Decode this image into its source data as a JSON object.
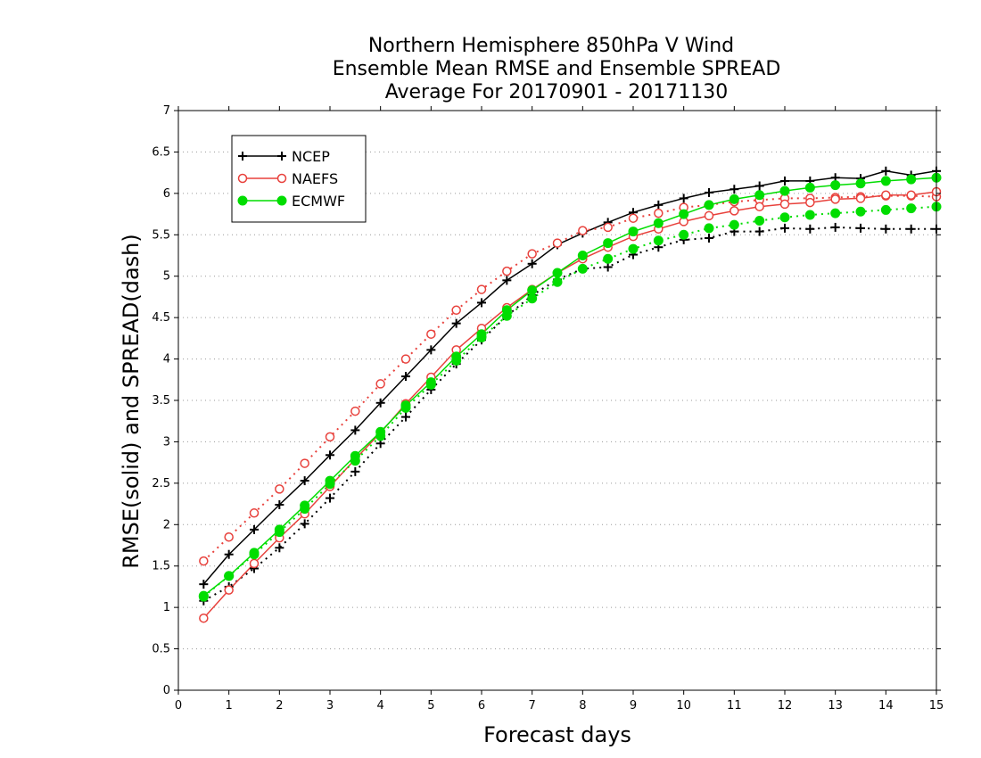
{
  "chart_data": {
    "type": "line",
    "title": [
      "Northern Hemisphere 850hPa V Wind",
      "Ensemble Mean RMSE and Ensemble SPREAD",
      "Average For 20170901 - 20171130"
    ],
    "xlabel": "Forecast days",
    "ylabel": "RMSE(solid) and SPREAD(dash)",
    "xlim": [
      0,
      15
    ],
    "ylim": [
      0,
      7
    ],
    "x_ticks": [
      "0",
      "1",
      "2",
      "3",
      "4",
      "5",
      "6",
      "7",
      "8",
      "9",
      "10",
      "11",
      "12",
      "13",
      "14",
      "15"
    ],
    "y_ticks": [
      "0",
      "0.5",
      "1",
      "1.5",
      "2",
      "2.5",
      "3",
      "3.5",
      "4",
      "4.5",
      "5",
      "5.5",
      "6",
      "6.5",
      "7"
    ],
    "grid": "horizontal dotted",
    "legend_position": "top-left",
    "x": [
      0.5,
      1,
      1.5,
      2,
      2.5,
      3,
      3.5,
      4,
      4.5,
      5,
      5.5,
      6,
      6.5,
      7,
      7.5,
      8,
      8.5,
      9,
      9.5,
      10,
      10.5,
      11,
      11.5,
      12,
      12.5,
      13,
      13.5,
      14,
      14.5,
      15
    ],
    "series": [
      {
        "name": "NCEP",
        "color": "#000000",
        "marker": "plus",
        "rmse": [
          1.28,
          1.64,
          1.94,
          2.24,
          2.53,
          2.84,
          3.14,
          3.47,
          3.79,
          4.11,
          4.43,
          4.68,
          4.95,
          5.15,
          5.38,
          5.52,
          5.65,
          5.77,
          5.86,
          5.94,
          6.01,
          6.05,
          6.09,
          6.15,
          6.15,
          6.19,
          6.18,
          6.27,
          6.22,
          6.27
        ],
        "spread": [
          1.08,
          1.25,
          1.47,
          1.72,
          2.01,
          2.32,
          2.64,
          2.98,
          3.3,
          3.63,
          3.94,
          4.23,
          4.52,
          4.77,
          4.96,
          5.09,
          5.11,
          5.26,
          5.35,
          5.44,
          5.46,
          5.54,
          5.54,
          5.58,
          5.57,
          5.59,
          5.58,
          5.57,
          5.57,
          5.57
        ]
      },
      {
        "name": "NAEFS",
        "color": "#e8413c",
        "marker": "circle-open",
        "rmse": [
          0.87,
          1.21,
          1.53,
          1.84,
          2.13,
          2.46,
          2.79,
          3.11,
          3.46,
          3.78,
          4.11,
          4.37,
          4.62,
          4.84,
          5.04,
          5.21,
          5.35,
          5.48,
          5.57,
          5.66,
          5.73,
          5.79,
          5.84,
          5.87,
          5.89,
          5.93,
          5.94,
          5.98,
          5.98,
          6.02
        ],
        "spread": [
          1.56,
          1.85,
          2.14,
          2.43,
          2.74,
          3.06,
          3.37,
          3.7,
          4.0,
          4.3,
          4.59,
          4.84,
          5.06,
          5.27,
          5.4,
          5.55,
          5.59,
          5.7,
          5.76,
          5.83,
          5.86,
          5.9,
          5.92,
          5.94,
          5.94,
          5.95,
          5.96,
          5.97,
          5.97,
          5.96
        ]
      },
      {
        "name": "ECMWF",
        "color": "#00dd00",
        "marker": "circle-filled",
        "rmse": [
          1.14,
          1.38,
          1.66,
          1.94,
          2.23,
          2.53,
          2.83,
          3.12,
          3.44,
          3.72,
          4.03,
          4.3,
          4.59,
          4.83,
          5.04,
          5.25,
          5.4,
          5.54,
          5.64,
          5.75,
          5.86,
          5.93,
          5.98,
          6.03,
          6.07,
          6.1,
          6.12,
          6.15,
          6.17,
          6.19
        ],
        "spread": [
          1.13,
          1.38,
          1.64,
          1.91,
          2.19,
          2.49,
          2.77,
          3.07,
          3.41,
          3.69,
          3.98,
          4.26,
          4.52,
          4.73,
          4.93,
          5.09,
          5.21,
          5.33,
          5.43,
          5.5,
          5.58,
          5.62,
          5.67,
          5.71,
          5.74,
          5.76,
          5.78,
          5.8,
          5.82,
          5.84
        ]
      }
    ]
  }
}
